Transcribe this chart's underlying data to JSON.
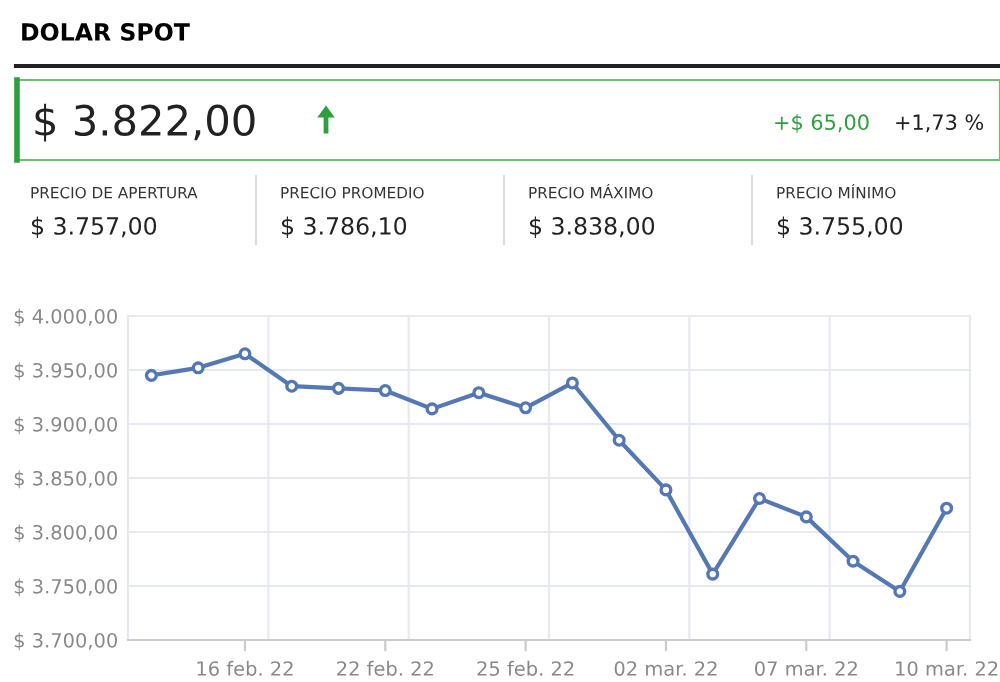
{
  "chart_data": [
    {
      "type": "other",
      "title": "DOLAR SPOT",
      "annotations": [
        "$ 3.822,00",
        "+$ 65,00",
        "+1,73 %",
        "PRECIO DE APERTURA",
        "$ 3.757,00",
        "PRECIO PROMEDIO",
        "$ 3.786,10",
        "PRECIO MÁXIMO",
        "$ 3.838,00",
        "PRECIO MÍNIMO",
        "$ 3.755,00"
      ]
    },
    {
      "type": "line",
      "categories": [
        null,
        null,
        "16 feb. 22",
        null,
        null,
        "22 feb. 22",
        null,
        null,
        "25 feb. 22",
        null,
        null,
        "02 mar. 22",
        null,
        null,
        "07 mar. 22",
        null,
        null,
        "10 mar. 22"
      ],
      "series": [
        {
          "color": "#5578b5",
          "values": [
            3945,
            3952,
            3965,
            3935,
            3933,
            3931,
            3914,
            3929,
            3915,
            3938,
            3885,
            3839,
            3761,
            3831,
            3814,
            3773,
            3745,
            3822
          ]
        }
      ],
      "ylim": [
        3700,
        4000
      ],
      "yticks": [
        {
          "value": 3700,
          "label": "$ 3.700,00"
        },
        {
          "value": 3750,
          "label": "$ 3.750,00"
        },
        {
          "value": 3800,
          "label": "$ 3.800,00"
        },
        {
          "value": 3850,
          "label": "$ 3.850,00"
        },
        {
          "value": 3900,
          "label": "$ 3.900,00"
        },
        {
          "value": 3950,
          "label": "$ 3.950,00"
        },
        {
          "value": 4000,
          "label": "$ 4.000,00"
        }
      ],
      "grid": true,
      "marker": "circle",
      "line_style": "solid",
      "legend": false
    }
  ]
}
